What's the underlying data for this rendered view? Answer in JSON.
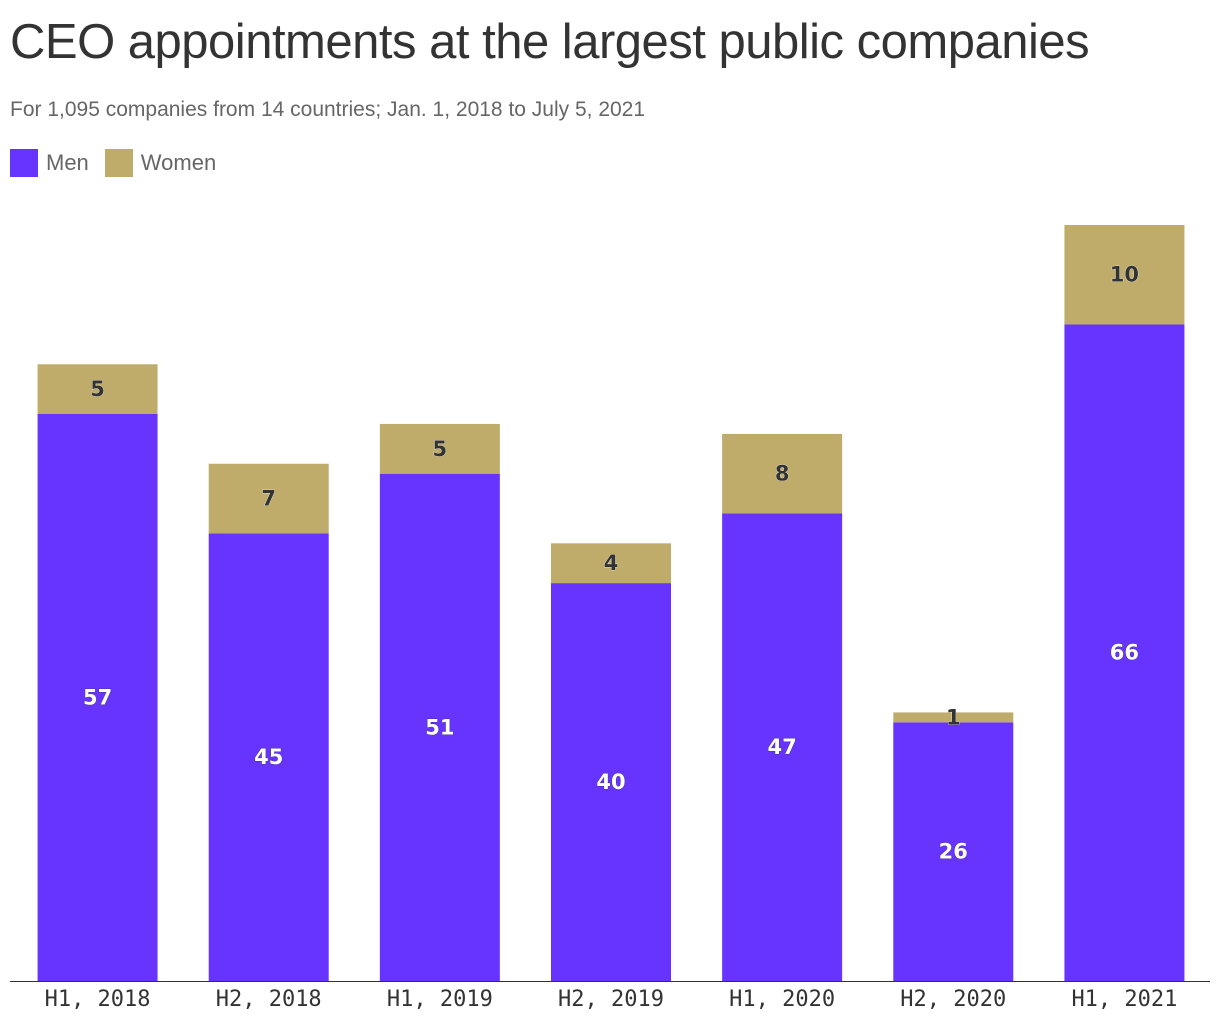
{
  "title": "CEO appointments at the largest public companies",
  "subtitle": "For 1,095 companies from 14 countries; Jan. 1, 2018 to July 5, 2021",
  "legend": [
    {
      "label": "Men",
      "color": "#6633ff"
    },
    {
      "label": "Women",
      "color": "#bfac6b"
    }
  ],
  "chart_data": {
    "type": "bar",
    "stacked": true,
    "categories": [
      "H1, 2018",
      "H2, 2018",
      "H1, 2019",
      "H2, 2019",
      "H1, 2020",
      "H2, 2020",
      "H1, 2021"
    ],
    "series": [
      {
        "name": "Men",
        "color": "#6633ff",
        "values": [
          57,
          45,
          51,
          40,
          47,
          26,
          66
        ]
      },
      {
        "name": "Women",
        "color": "#bfac6b",
        "values": [
          5,
          7,
          5,
          4,
          8,
          1,
          10
        ]
      }
    ],
    "ylim": [
      0,
      76
    ],
    "grid": false,
    "legend_position": "top-left",
    "data_labels": true
  }
}
